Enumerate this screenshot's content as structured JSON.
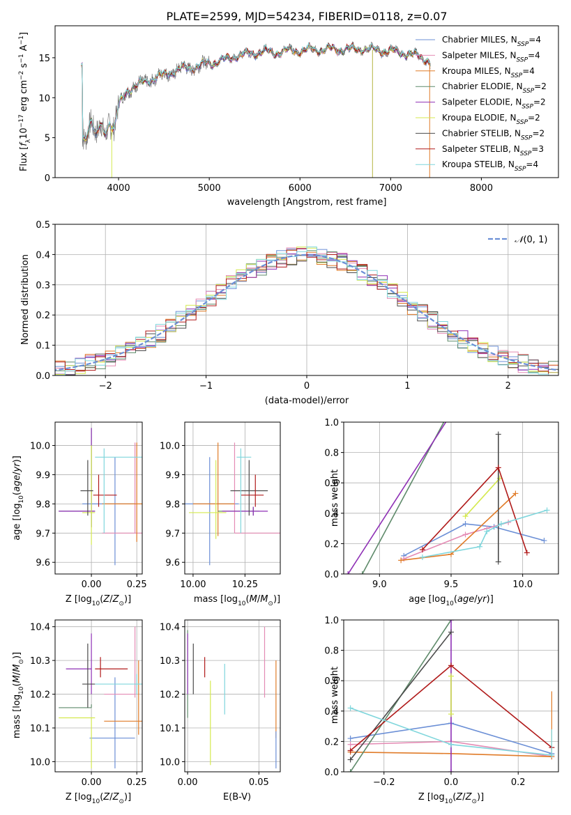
{
  "colors": {
    "Chabrier MILES": "#6b8fd6",
    "Salpeter MILES": "#e48bb4",
    "Kroupa MILES": "#e07b28",
    "Chabrier ELODIE": "#5e8a6a",
    "Salpeter ELODIE": "#8e2fb5",
    "Kroupa ELODIE": "#d4e94e",
    "Chabrier STELIB": "#4a4a4a",
    "Salpeter STELIB": "#b01a1a",
    "Kroupa STELIB": "#7fd6dc",
    "gauss": "#6b8fd6"
  },
  "chart_data": [
    {
      "type": "line",
      "title": "PLATE=2599, MJD=54234, FIBERID=0118, z=0.07",
      "xlabel": "wavelength [Angstrom, rest frame]",
      "ylabel": "Flux [f",
      "ylabel_parts": [
        "Flux [f",
        "λ",
        "10",
        "−17",
        " erg cm",
        "−2",
        " s",
        "−1",
        " A",
        "−1",
        "]"
      ],
      "xlim": [
        3300,
        8850
      ],
      "ylim": [
        0,
        19
      ],
      "xticks": [
        "4000",
        "5000",
        "6000",
        "7000",
        "8000"
      ],
      "yticks": [
        "0",
        "5",
        "10",
        "15"
      ],
      "legend": "top-right",
      "legend_entries": [
        {
          "name": "Chabrier MILES, N",
          "sub": "SSP",
          "tail": "=4"
        },
        {
          "name": "Salpeter MILES, N",
          "sub": "SSP",
          "tail": "=4"
        },
        {
          "name": "Kroupa MILES, N",
          "sub": "SSP",
          "tail": "=4"
        },
        {
          "name": "Chabrier ELODIE, N",
          "sub": "SSP",
          "tail": "=2"
        },
        {
          "name": "Salpeter ELODIE, N",
          "sub": "SSP",
          "tail": "=2"
        },
        {
          "name": "Kroupa ELODIE, N",
          "sub": "SSP",
          "tail": "=2"
        },
        {
          "name": "Chabrier STELIB, N",
          "sub": "SSP",
          "tail": "=2"
        },
        {
          "name": "Salpeter STELIB, N",
          "sub": "SSP",
          "tail": "=3"
        },
        {
          "name": "Kroupa STELIB, N",
          "sub": "SSP",
          "tail": "=4"
        }
      ],
      "data_envelope": {
        "x": [
          3600,
          3650,
          3700,
          3750,
          3800,
          3850,
          3900,
          3950,
          4000,
          4100,
          4200,
          4300,
          4400,
          4500,
          4600,
          4700,
          4800,
          4900,
          5000,
          5100,
          5200,
          5300,
          5400,
          5500,
          5600,
          5700,
          5800,
          5900,
          6000,
          6100,
          6200,
          6300,
          6400,
          6500,
          6600,
          6700,
          6800,
          6900,
          7000,
          7100,
          7200,
          7300,
          7400,
          7450
        ],
        "y": [
          4.5,
          5.5,
          7.5,
          5.0,
          6.5,
          5.5,
          7.0,
          6.0,
          9.0,
          11.0,
          11.5,
          12.0,
          12.5,
          12.8,
          13.3,
          13.6,
          13.8,
          14.0,
          14.3,
          14.6,
          14.8,
          15.3,
          15.4,
          15.6,
          15.8,
          15.6,
          15.8,
          15.9,
          15.9,
          16.0,
          16.0,
          16.1,
          16.0,
          16.1,
          16.0,
          16.2,
          16.0,
          15.9,
          15.8,
          15.7,
          15.5,
          15.2,
          14.8,
          14.0
        ]
      }
    },
    {
      "type": "bar",
      "xlabel": "(data-model)/error",
      "ylabel": "Normed distribution",
      "xlim": [
        -2.5,
        2.5
      ],
      "ylim": [
        0,
        0.5
      ],
      "xticks": [
        "−2",
        "−1",
        "0",
        "1",
        "2"
      ],
      "yticks": [
        "0.0",
        "0.1",
        "0.2",
        "0.3",
        "0.4",
        "0.5"
      ],
      "legend": "top-right",
      "legend_label": "N(0, 1)"
    },
    {
      "type": "scatter",
      "xlabel": "Z [log10(Z/Z⊙)]",
      "ylabel": "age  [log10(age/yr)]",
      "xlim": [
        -0.2,
        0.28
      ],
      "ylim": [
        9.56,
        10.08
      ],
      "xticks": [
        "0.00",
        "0.25"
      ],
      "yticks": [
        "9.6",
        "9.7",
        "9.8",
        "9.9",
        "10.0"
      ]
    },
    {
      "type": "scatter",
      "xlabel": "mass [log10(M/M⊙)]",
      "ylabel": "",
      "xlim": [
        9.96,
        10.42
      ],
      "ylim": [
        9.56,
        10.08
      ],
      "xticks": [
        "10.00",
        "10.25"
      ],
      "yticks": [
        "9.6",
        "9.7",
        "9.8",
        "9.9",
        "10.0"
      ]
    },
    {
      "type": "line",
      "xlabel": "age  [log10(age/yr)]",
      "ylabel": "mass weight",
      "xlim": [
        8.75,
        10.25
      ],
      "ylim": [
        0,
        1
      ],
      "xticks": [
        "9.0",
        "9.5",
        "10.0"
      ],
      "yticks": [
        "0.0",
        "0.2",
        "0.4",
        "0.6",
        "0.8",
        "1.0"
      ]
    },
    {
      "type": "scatter",
      "xlabel": "Z [log10(Z/Z⊙)]",
      "ylabel": "mass [log10(M/M⊙)]",
      "xlim": [
        -0.2,
        0.28
      ],
      "ylim": [
        9.97,
        10.42
      ],
      "xticks": [
        "0.00",
        "0.25"
      ],
      "yticks": [
        "10.0",
        "10.1",
        "10.2",
        "10.3",
        "10.4"
      ]
    },
    {
      "type": "scatter",
      "xlabel": "E(B-V)",
      "ylabel": "",
      "xlim": [
        -0.002,
        0.065
      ],
      "ylim": [
        9.97,
        10.42
      ],
      "xticks": [
        "0.00",
        "0.05"
      ],
      "yticks": [
        "10.0",
        "10.1",
        "10.2",
        "10.3",
        "10.4"
      ]
    },
    {
      "type": "line",
      "xlabel": "Z [log10(Z/Z⊙)]",
      "ylabel": "mass weight",
      "xlim": [
        -0.32,
        0.32
      ],
      "ylim": [
        0,
        1
      ],
      "xticks": [
        "−0.2",
        "0.0",
        "0.2"
      ],
      "yticks": [
        "0.0",
        "0.2",
        "0.4",
        "0.6",
        "0.8",
        "1.0"
      ]
    }
  ]
}
